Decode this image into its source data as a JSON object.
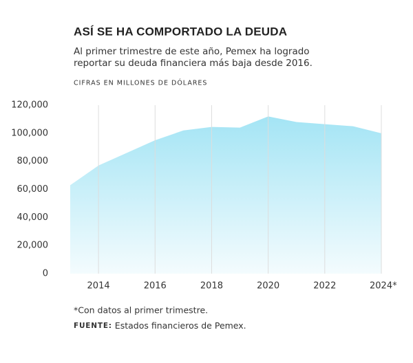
{
  "chart_data": {
    "type": "area",
    "title": "ASÍ SE HA COMPORTADO LA DEUDA",
    "subtitle": [
      "Al primer trimestre de este año, Pemex ha logrado",
      "reportar su deuda financiera más baja desde 2016."
    ],
    "units": "CIFRAS EN MILLONES DE DÓLARES",
    "x": [
      2013,
      2014,
      2015,
      2016,
      2017,
      2018,
      2019,
      2020,
      2021,
      2022,
      2023,
      2024
    ],
    "values": [
      63000,
      77000,
      86000,
      95000,
      102000,
      104500,
      104000,
      112000,
      108000,
      106500,
      105000,
      100000
    ],
    "color": "#9fe3f4",
    "xlim": [
      2013,
      2024
    ],
    "xticks": [
      2014,
      2016,
      2018,
      2020,
      2022,
      {
        "value": 2024,
        "label": "2024*"
      }
    ],
    "ylim": [
      0,
      120000
    ],
    "yticks": [
      0,
      {
        "value": 20000,
        "label": "20,000"
      },
      {
        "value": 40000,
        "label": "40,000"
      },
      {
        "value": 60000,
        "label": "60,000"
      },
      {
        "value": 80000,
        "label": "80,000"
      },
      {
        "value": 100000,
        "label": "100,000"
      },
      {
        "value": 120000,
        "label": "120,000"
      }
    ],
    "grid": "x",
    "footnote": "*Con datos al primer trimestre.",
    "source": {
      "label": "FUENTE:",
      "text": "Estados financieros de Pemex."
    }
  }
}
